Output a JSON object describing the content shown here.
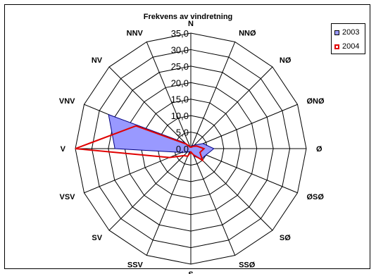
{
  "chart_data": {
    "type": "radar",
    "title": "Frekvens av vindretning",
    "categories": [
      "N",
      "NNØ",
      "NØ",
      "ØNØ",
      "Ø",
      "ØSØ",
      "SØ",
      "SSØ",
      "S",
      "SSV",
      "SV",
      "VSV",
      "V",
      "VNV",
      "NV",
      "NNV"
    ],
    "radial_ticks": [
      "0,0",
      "5,0",
      "10,0",
      "15,0",
      "20,0",
      "25,0",
      "30,0",
      "35,0"
    ],
    "rlim": [
      0,
      35
    ],
    "legend_position": "top-right",
    "series": [
      {
        "name": "2003",
        "type": "filled",
        "color": "#9999ff",
        "values": [
          0.5,
          1.0,
          1.5,
          4.0,
          7.0,
          5.0,
          4.5,
          2.5,
          1.0,
          1.0,
          1.5,
          3.0,
          23.0,
          27.0,
          2.5,
          0.5
        ]
      },
      {
        "name": "2004",
        "type": "line",
        "color": "#e00000",
        "values": [
          0.5,
          0.5,
          1.0,
          2.0,
          4.0,
          3.0,
          5.0,
          2.0,
          1.0,
          2.5,
          3.0,
          7.0,
          35.0,
          18.0,
          2.0,
          0.5
        ]
      }
    ]
  }
}
